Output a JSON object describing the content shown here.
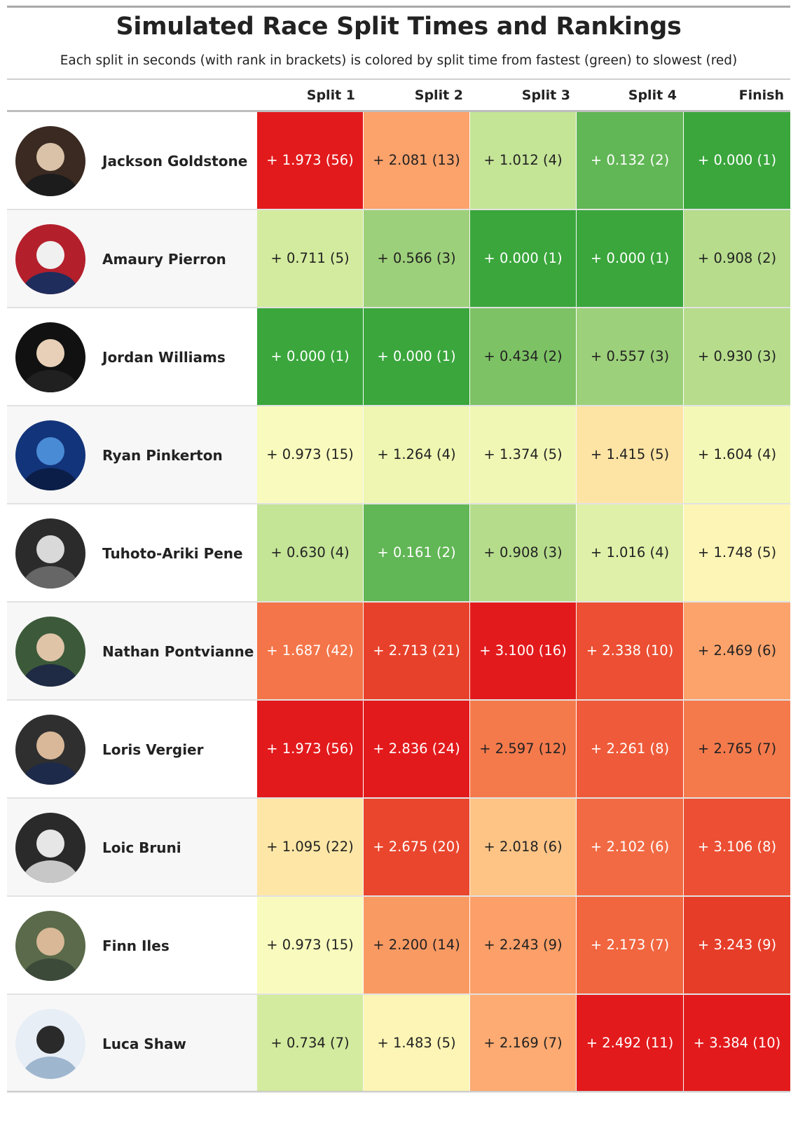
{
  "title": "Simulated Race Split Times and Rankings",
  "subtitle": "Each split in seconds (with rank in brackets) is colored by split time from fastest (green) to slowest (red)",
  "columns": [
    "Split 1",
    "Split 2",
    "Split 3",
    "Split 4",
    "Finish"
  ],
  "icons": {
    "rider_photo": "rider-photo-icon"
  },
  "chart_data": {
    "type": "table",
    "title": "Simulated Race Split Times and Rankings",
    "subtitle": "Each split in seconds (with rank in brackets) is colored by split time from fastest (green) to slowest (red)",
    "columns": [
      "Split 1",
      "Split 2",
      "Split 3",
      "Split 4",
      "Finish"
    ],
    "colors": {
      "fastest": "#3aa63c",
      "slowest": "#e31a1c"
    },
    "rows": [
      {
        "rider": "Jackson Goldstone",
        "cells": [
          {
            "text": "+ 1.973 (56)",
            "color": "#e31a1c"
          },
          {
            "text": "+ 2.081 (13)",
            "color": "#fca26b"
          },
          {
            "text": "+ 1.012 (4)",
            "color": "#c4e496"
          },
          {
            "text": "+ 0.132 (2)",
            "color": "#61b655"
          },
          {
            "text": "+ 0.000 (1)",
            "color": "#3aa63c"
          }
        ]
      },
      {
        "rider": "Amaury Pierron",
        "cells": [
          {
            "text": "+ 0.711 (5)",
            "color": "#d3eb9e"
          },
          {
            "text": "+ 0.566 (3)",
            "color": "#9dd07a"
          },
          {
            "text": "+ 0.000 (1)",
            "color": "#3aa63c"
          },
          {
            "text": "+ 0.000 (1)",
            "color": "#3aa63c"
          },
          {
            "text": "+ 0.908 (2)",
            "color": "#b6dc8c"
          }
        ]
      },
      {
        "rider": "Jordan Williams",
        "cells": [
          {
            "text": "+ 0.000 (1)",
            "color": "#3aa63c"
          },
          {
            "text": "+ 0.000 (1)",
            "color": "#3aa63c"
          },
          {
            "text": "+ 0.434 (2)",
            "color": "#7dc265"
          },
          {
            "text": "+ 0.557 (3)",
            "color": "#9dd07a"
          },
          {
            "text": "+ 0.930 (3)",
            "color": "#b7dd8c"
          }
        ]
      },
      {
        "rider": "Ryan Pinkerton",
        "cells": [
          {
            "text": "+ 0.973 (15)",
            "color": "#f8fbbd"
          },
          {
            "text": "+ 1.264 (4)",
            "color": "#eef6b1"
          },
          {
            "text": "+ 1.374 (5)",
            "color": "#f0f7b4"
          },
          {
            "text": "+ 1.415 (5)",
            "color": "#fee4a4"
          },
          {
            "text": "+ 1.604 (4)",
            "color": "#f3f8b6"
          }
        ]
      },
      {
        "rider": "Tuhoto-Ariki Pene",
        "cells": [
          {
            "text": "+ 0.630 (4)",
            "color": "#c4e496"
          },
          {
            "text": "+ 0.161 (2)",
            "color": "#61b655"
          },
          {
            "text": "+ 0.908 (3)",
            "color": "#b5dc8b"
          },
          {
            "text": "+ 1.016 (4)",
            "color": "#dff0a8"
          },
          {
            "text": "+ 1.748 (5)",
            "color": "#fdf5b5"
          }
        ]
      },
      {
        "rider": "Nathan Pontvianne",
        "cells": [
          {
            "text": "+ 1.687 (42)",
            "color": "#f47549"
          },
          {
            "text": "+ 2.713 (21)",
            "color": "#e8412b"
          },
          {
            "text": "+ 3.100 (16)",
            "color": "#e31a1c"
          },
          {
            "text": "+ 2.338 (10)",
            "color": "#ec4f33"
          },
          {
            "text": "+ 2.469 (6)",
            "color": "#fca26b"
          }
        ]
      },
      {
        "rider": "Loris Vergier",
        "cells": [
          {
            "text": "+ 1.973 (56)",
            "color": "#e31a1c"
          },
          {
            "text": "+ 2.836 (24)",
            "color": "#e31a1c"
          },
          {
            "text": "+ 2.597 (12)",
            "color": "#f47a4c"
          },
          {
            "text": "+ 2.261 (8)",
            "color": "#ef5b3a"
          },
          {
            "text": "+ 2.765 (7)",
            "color": "#f47a4c"
          }
        ]
      },
      {
        "rider": "Loic Bruni",
        "cells": [
          {
            "text": "+ 1.095 (22)",
            "color": "#fee7a6"
          },
          {
            "text": "+ 2.675 (20)",
            "color": "#e9462d"
          },
          {
            "text": "+ 2.018 (6)",
            "color": "#fdc486"
          },
          {
            "text": "+ 2.102 (6)",
            "color": "#f26a43"
          },
          {
            "text": "+ 3.106 (8)",
            "color": "#ec4f33"
          }
        ]
      },
      {
        "rider": "Finn Iles",
        "cells": [
          {
            "text": "+ 0.973 (15)",
            "color": "#f8fbbd"
          },
          {
            "text": "+ 2.200 (14)",
            "color": "#fa9a63"
          },
          {
            "text": "+ 2.243 (9)",
            "color": "#fc9f68"
          },
          {
            "text": "+ 2.173 (7)",
            "color": "#f1653f"
          },
          {
            "text": "+ 3.243 (9)",
            "color": "#e63d29"
          }
        ]
      },
      {
        "rider": "Luca Shaw",
        "cells": [
          {
            "text": "+ 0.734 (7)",
            "color": "#d3eb9e"
          },
          {
            "text": "+ 1.483 (5)",
            "color": "#fdf5b5"
          },
          {
            "text": "+ 2.169 (7)",
            "color": "#fdab72"
          },
          {
            "text": "+ 2.492 (11)",
            "color": "#e31a1c"
          },
          {
            "text": "+ 3.384 (10)",
            "color": "#e31a1c"
          }
        ]
      }
    ]
  }
}
